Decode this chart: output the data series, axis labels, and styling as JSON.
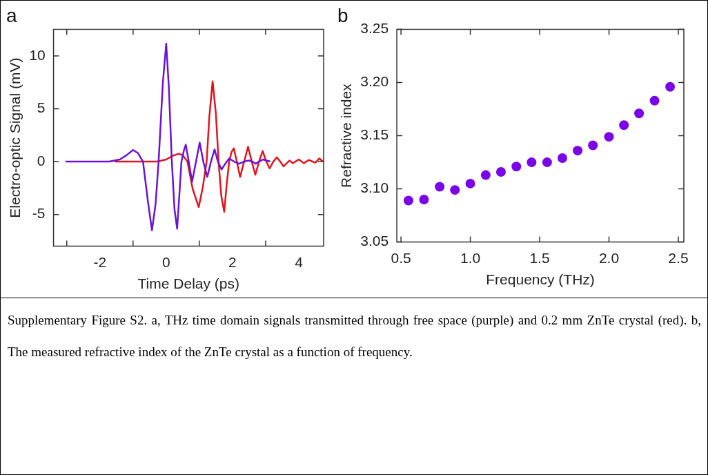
{
  "chart_data": [
    {
      "type": "line",
      "title": "a",
      "xlabel": "Time Delay (ps)",
      "ylabel": "Electro-optic Signal (mV)",
      "xlim": [
        -3.4,
        4.75
      ],
      "ylim": [
        -8,
        12.5
      ],
      "xticks": [
        {
          "value": -3,
          "label": null
        },
        -2,
        {
          "value": -1,
          "label": null
        },
        0,
        {
          "value": 1,
          "label": null
        },
        2,
        {
          "value": 3,
          "label": null
        },
        4
      ],
      "yticks": [
        -5,
        0,
        5,
        10
      ],
      "annotations": [
        "Supplementary Figure S2. a, THz time domain signals transmitted through free space (purple) and 0.2 mm ZnTe crystal (red). b, The measured refractive index of the ZnTe crystal as a function of frequency."
      ],
      "series": [
        {
          "color": "#6a12d8",
          "x": [
            -3.04,
            -1.72,
            -1.4,
            -1.2,
            -1.0,
            -0.85,
            -0.7,
            -0.55,
            -0.43,
            -0.32,
            -0.23,
            -0.1,
            0,
            0.08,
            0.17,
            0.25,
            0.33,
            0.4,
            0.46,
            0.53,
            0.59,
            0.68,
            0.78,
            0.9,
            1.01,
            1.12,
            1.24,
            1.35,
            1.46,
            1.56,
            1.67,
            1.78,
            1.9,
            2.05,
            2.2,
            2.35,
            2.49,
            2.6,
            2.7,
            2.8,
            2.92,
            3.14
          ],
          "values": [
            0,
            0,
            0.2,
            0.6,
            1.1,
            0.8,
            0,
            -3.8,
            -6.5,
            -4.0,
            0,
            7.5,
            11.15,
            7.0,
            0,
            -4.5,
            -6.35,
            -3.0,
            0,
            1.0,
            1.6,
            0,
            -1.9,
            0,
            1.8,
            0,
            -1.45,
            0,
            1.15,
            0,
            -0.75,
            -0.2,
            0.3,
            0,
            -0.2,
            0,
            0.1,
            0,
            -0.2,
            0,
            0.2,
            0
          ]
        },
        {
          "color": "#e0141c",
          "x": [
            -1.56,
            -0.27,
            0.0,
            0.2,
            0.38,
            0.5,
            0.64,
            0.8,
            0.98,
            1.1,
            1.22,
            1.3,
            1.4,
            1.5,
            1.58,
            1.66,
            1.75,
            1.83,
            1.9,
            1.97,
            2.04,
            2.13,
            2.23,
            2.35,
            2.47,
            2.58,
            2.69,
            2.8,
            2.91,
            3.02,
            3.12,
            3.23,
            3.34,
            3.44,
            3.54,
            3.72,
            3.82,
            4.0,
            4.15,
            4.3,
            4.5,
            4.62,
            4.73
          ],
          "values": [
            0,
            0,
            0.2,
            0.55,
            0.75,
            0.6,
            0,
            -2.6,
            -4.3,
            -2.5,
            0,
            4.2,
            7.6,
            4.5,
            0,
            -3.2,
            -4.75,
            -2.0,
            0,
            0.9,
            1.25,
            0,
            -1.45,
            0,
            1.4,
            0,
            -1.25,
            0,
            1.0,
            0,
            -0.65,
            0,
            0.4,
            0,
            -0.45,
            0.1,
            -0.15,
            0.2,
            -0.15,
            0.15,
            -0.1,
            0.3,
            0
          ]
        }
      ]
    },
    {
      "type": "scatter",
      "title": "b",
      "xlabel": "Frequency (THz)",
      "ylabel": "Refractive index",
      "marker": "circle",
      "xlim": [
        0.47,
        2.54
      ],
      "ylim": [
        3.05,
        3.25
      ],
      "xticks": [
        0.5,
        {
          "value": 1,
          "label": "1.0"
        },
        1.5,
        {
          "value": 2,
          "label": "2.0"
        },
        2.5
      ],
      "yticks": [
        {
          "value": 3.05,
          "label": "3.05"
        },
        {
          "value": 3.1,
          "label": "3.10"
        },
        {
          "value": 3.15,
          "label": "3.15"
        },
        {
          "value": 3.2,
          "label": "3.20"
        },
        {
          "value": 3.25,
          "label": "3.25"
        }
      ],
      "series": [
        {
          "color": "#7a05e6",
          "x": [
            0.554,
            0.666,
            0.779,
            0.889,
            1.0,
            1.111,
            1.221,
            1.332,
            1.442,
            1.554,
            1.664,
            1.774,
            1.884,
            2.0,
            2.108,
            2.217,
            2.329,
            2.441
          ],
          "values": [
            3.089,
            3.09,
            3.102,
            3.099,
            3.105,
            3.113,
            3.116,
            3.121,
            3.125,
            3.125,
            3.129,
            3.136,
            3.141,
            3.149,
            3.16,
            3.171,
            3.183,
            3.196
          ]
        }
      ]
    }
  ]
}
